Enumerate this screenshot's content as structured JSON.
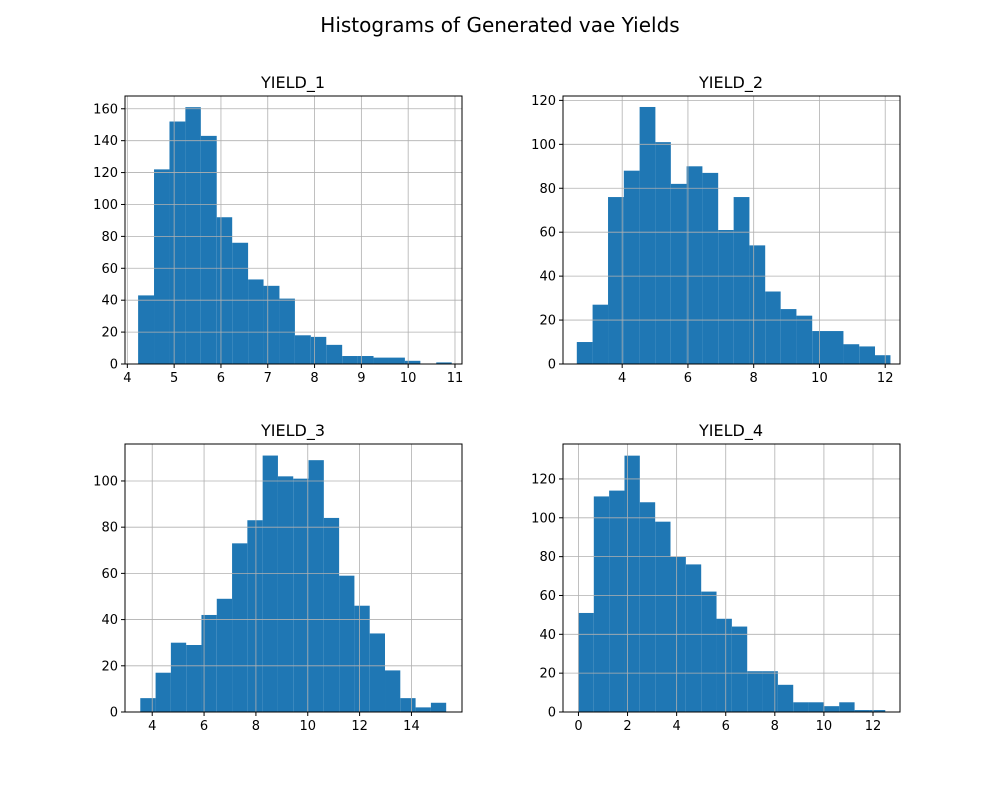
{
  "figure": {
    "title": "Histograms of Generated vae Yields"
  },
  "colors": {
    "bar": "#1f77b4",
    "grid": "#b0b0b0"
  },
  "chart_data": [
    {
      "type": "bar",
      "title": "YIELD_1",
      "grid": true,
      "xlim": [
        3.95,
        11.15
      ],
      "ylim": [
        0,
        168
      ],
      "xticks": [
        4,
        5,
        6,
        7,
        8,
        9,
        10,
        11
      ],
      "yticks": [
        0,
        20,
        40,
        60,
        80,
        100,
        120,
        140,
        160
      ],
      "bin_edges": [
        4.23,
        4.57,
        4.9,
        5.24,
        5.57,
        5.91,
        6.24,
        6.58,
        6.91,
        7.25,
        7.58,
        7.92,
        8.25,
        8.59,
        8.92,
        9.26,
        9.59,
        9.93,
        10.26,
        10.6,
        10.93
      ],
      "counts": [
        43,
        122,
        152,
        161,
        143,
        92,
        76,
        53,
        49,
        41,
        18,
        17,
        12,
        5,
        5,
        4,
        4,
        2,
        0,
        1
      ]
    },
    {
      "type": "bar",
      "title": "YIELD_2",
      "grid": true,
      "xlim": [
        2.2,
        12.45
      ],
      "ylim": [
        0,
        122
      ],
      "xticks": [
        4,
        6,
        8,
        10,
        12
      ],
      "yticks": [
        0,
        20,
        40,
        60,
        80,
        100,
        120
      ],
      "bin_edges": [
        2.62,
        3.1,
        3.57,
        4.05,
        4.53,
        5.01,
        5.48,
        5.96,
        6.44,
        6.92,
        7.39,
        7.87,
        8.35,
        8.82,
        9.3,
        9.78,
        10.26,
        10.73,
        11.21,
        11.69,
        12.16
      ],
      "counts": [
        10,
        27,
        76,
        88,
        117,
        101,
        82,
        90,
        87,
        61,
        76,
        54,
        33,
        25,
        22,
        15,
        15,
        9,
        8,
        4
      ]
    },
    {
      "type": "bar",
      "title": "YIELD_3",
      "grid": true,
      "xlim": [
        2.95,
        15.95
      ],
      "ylim": [
        0,
        116
      ],
      "xticks": [
        4,
        6,
        8,
        10,
        12,
        14
      ],
      "yticks": [
        0,
        20,
        40,
        60,
        80,
        100
      ],
      "bin_edges": [
        3.54,
        4.13,
        4.72,
        5.31,
        5.9,
        6.49,
        7.08,
        7.67,
        8.26,
        8.85,
        9.44,
        10.03,
        10.62,
        11.21,
        11.8,
        12.39,
        12.98,
        13.57,
        14.16,
        14.75,
        15.34
      ],
      "counts": [
        6,
        17,
        30,
        29,
        42,
        49,
        73,
        83,
        111,
        102,
        101,
        109,
        84,
        59,
        46,
        34,
        18,
        6,
        2,
        4
      ]
    },
    {
      "type": "bar",
      "title": "YIELD_4",
      "grid": true,
      "xlim": [
        -0.63,
        13.1
      ],
      "ylim": [
        0,
        138
      ],
      "xticks": [
        0,
        2,
        4,
        6,
        8,
        10,
        12
      ],
      "yticks": [
        0,
        20,
        40,
        60,
        80,
        100,
        120
      ],
      "bin_edges": [
        0.0,
        0.625,
        1.25,
        1.875,
        2.5,
        3.125,
        3.75,
        4.375,
        5.0,
        5.625,
        6.25,
        6.875,
        7.5,
        8.125,
        8.75,
        9.375,
        10.0,
        10.625,
        11.25,
        11.875,
        12.5
      ],
      "counts": [
        51,
        111,
        114,
        132,
        108,
        98,
        80,
        76,
        62,
        48,
        44,
        21,
        21,
        14,
        5,
        5,
        3,
        5,
        1,
        1
      ]
    }
  ]
}
